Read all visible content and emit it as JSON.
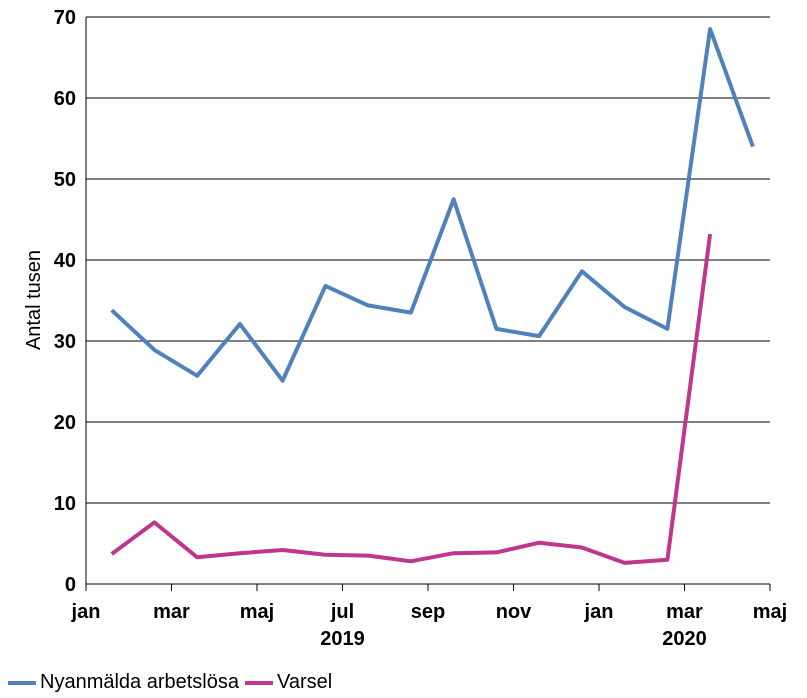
{
  "chart_data": {
    "type": "line",
    "ylabel": "Antal tusen",
    "ylim": [
      0,
      70
    ],
    "yticks": [
      0,
      10,
      20,
      30,
      40,
      50,
      60,
      70
    ],
    "grid": true,
    "legend_position": "bottom-left",
    "x_month_labels": [
      "jan",
      "mar",
      "maj",
      "jul",
      "sep",
      "nov",
      "jan",
      "mar",
      "maj"
    ],
    "x_year_labels": [
      {
        "label": "2019",
        "under_month_index": 3
      },
      {
        "label": "2020",
        "under_month_index": 7
      }
    ],
    "x": [
      "2019-01",
      "2019-02",
      "2019-03",
      "2019-04",
      "2019-05",
      "2019-06",
      "2019-07",
      "2019-08",
      "2019-09",
      "2019-10",
      "2019-11",
      "2019-12",
      "2020-01",
      "2020-02",
      "2020-03",
      "2020-04"
    ],
    "series": [
      {
        "name": "Nyanmälda arbetslösa",
        "color": "#4F81BD",
        "values": [
          33.8,
          28.9,
          25.7,
          32.1,
          25.1,
          36.8,
          34.4,
          33.5,
          47.5,
          31.5,
          30.6,
          38.6,
          34.2,
          31.5,
          68.5,
          54.0
        ]
      },
      {
        "name": "Varsel",
        "color": "#C0368C",
        "values": [
          3.7,
          7.6,
          3.3,
          3.8,
          4.2,
          3.6,
          3.5,
          2.8,
          3.8,
          3.9,
          5.1,
          4.5,
          2.6,
          3.0,
          43.2,
          null
        ]
      }
    ]
  }
}
